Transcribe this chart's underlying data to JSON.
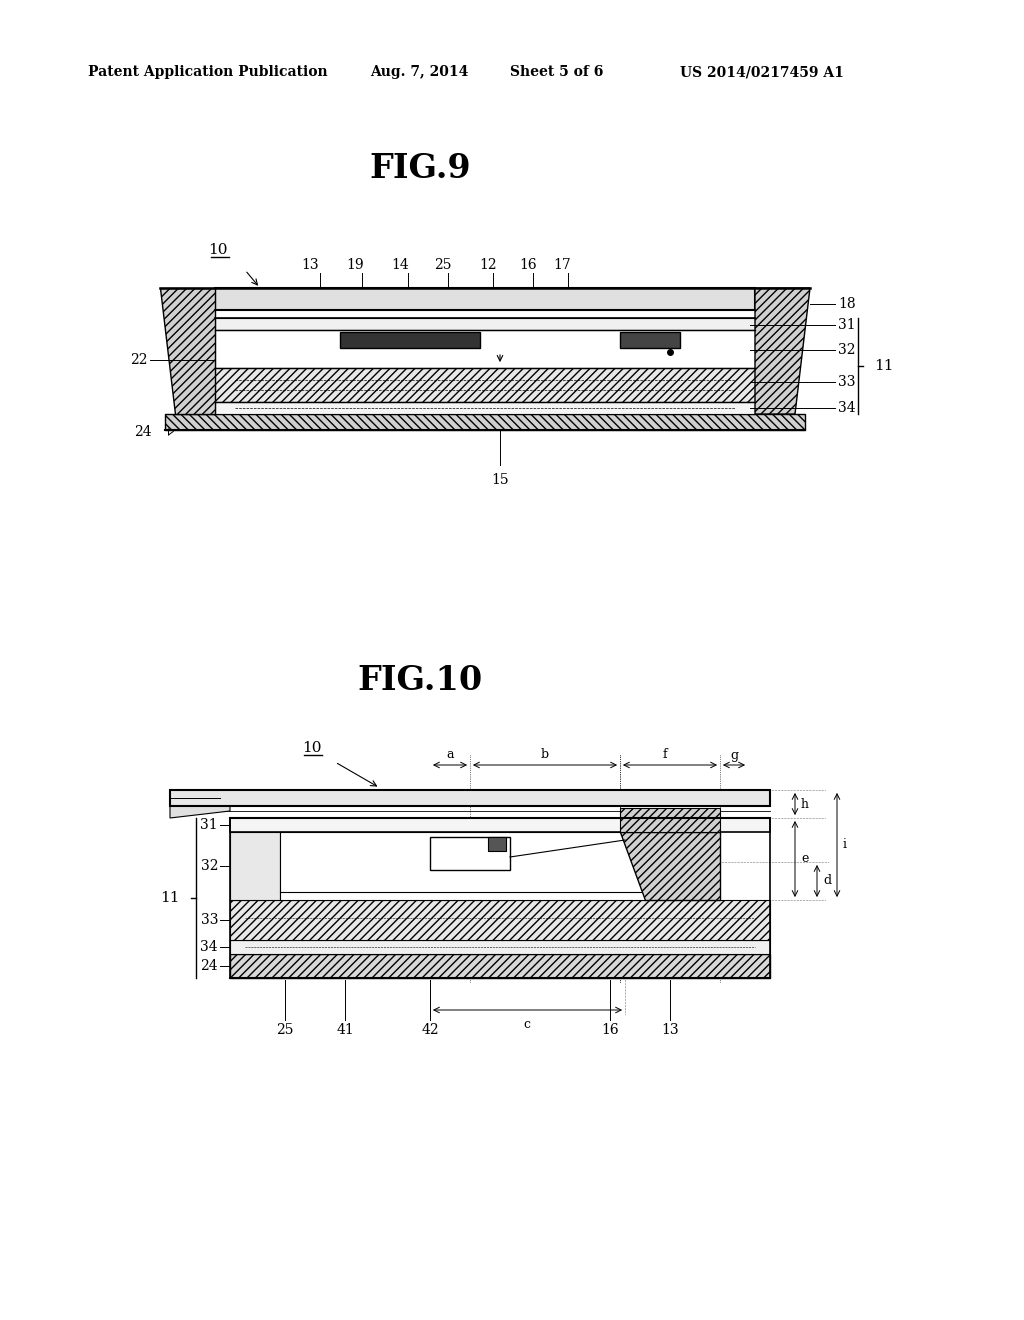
{
  "bg_color": "#ffffff",
  "header_text": "Patent Application Publication",
  "header_date": "Aug. 7, 2014",
  "header_sheet": "Sheet 5 of 6",
  "header_patent": "US 2014/0217459 A1",
  "fig9_title": "FIG.9",
  "fig10_title": "FIG.10"
}
